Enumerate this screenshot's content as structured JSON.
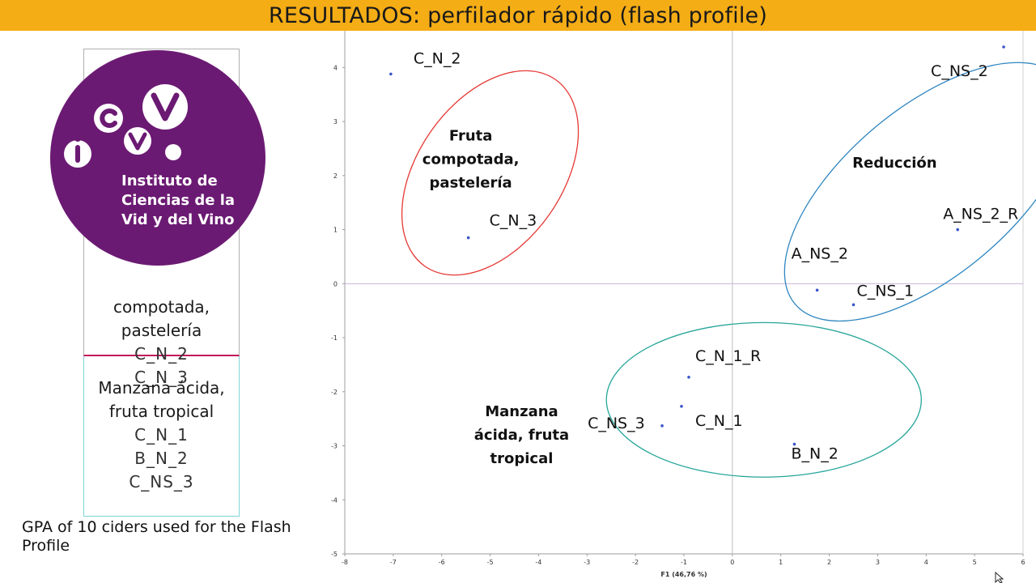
{
  "header": {
    "title": "RESULTADOS: perfilador rápido (flash profile)"
  },
  "logo": {
    "lines": [
      "Instituto de",
      "Ciencias de la",
      "Vid y del Vino"
    ],
    "mark_text": "icvv",
    "color": "#6b1a73"
  },
  "legend": {
    "group1": {
      "lines": [
        "compotada,",
        "pastelería"
      ],
      "ids": [
        "C_N_2",
        "C_N_3"
      ],
      "border_color": "#c2185b"
    },
    "group2": {
      "lines": [
        "Manzana ácida,",
        "fruta tropical"
      ],
      "ids": [
        "C_N_1",
        "B_N_2",
        "C_NS_3"
      ],
      "border_color": "#7fd6d6"
    }
  },
  "caption": "GPA of 10 ciders used for the Flash Profile",
  "chart_data": {
    "type": "scatter",
    "xlabel": "F1 (46,76 %)",
    "ylabel": "",
    "xlim": [
      -8,
      6
    ],
    "ylim": [
      -5,
      4.5
    ],
    "xticks": [
      -8,
      -7,
      -6,
      -5,
      -4,
      -3,
      -2,
      -1,
      0,
      1,
      2,
      3,
      4,
      5,
      6
    ],
    "yticks": [
      -5,
      -4,
      -3,
      -2,
      -1,
      0,
      1,
      2,
      3,
      4
    ],
    "grid": false,
    "points": [
      {
        "label": "C_N_2",
        "x": -7.05,
        "y": 3.88
      },
      {
        "label": "C_N_3",
        "x": -5.45,
        "y": 0.85
      },
      {
        "label": "C_NS_2",
        "x": 5.6,
        "y": 4.38
      },
      {
        "label": "A_NS_2_R",
        "x": 4.65,
        "y": 1.0
      },
      {
        "label": "A_NS_2",
        "x": 1.75,
        "y": -0.12
      },
      {
        "label": "C_NS_1",
        "x": 2.5,
        "y": -0.39
      },
      {
        "label": "C_N_1_R",
        "x": -0.9,
        "y": -1.73
      },
      {
        "label": "C_N_1",
        "x": -1.05,
        "y": -2.27
      },
      {
        "label": "C_NS_3",
        "x": -1.45,
        "y": -2.63
      },
      {
        "label": "B_N_2",
        "x": 1.28,
        "y": -2.97
      }
    ],
    "groups": [
      {
        "label_lines": [
          "Fruta",
          "compotada,",
          "pastelería"
        ],
        "color": "#e53935"
      },
      {
        "label_lines": [
          "Reducción"
        ],
        "color": "#2e86c1"
      },
      {
        "label_lines": [
          "Manzana",
          "ácida, fruta",
          "tropical"
        ],
        "color": "#26a69a"
      }
    ]
  }
}
